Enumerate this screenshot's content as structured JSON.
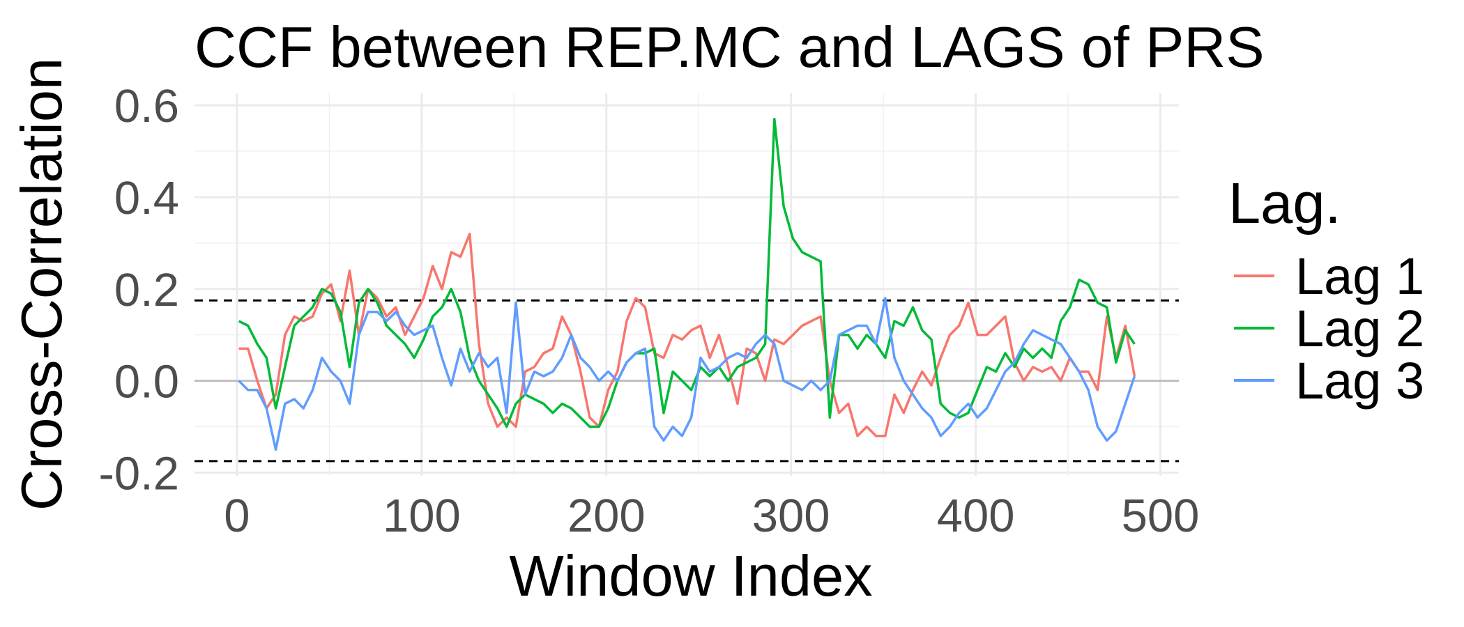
{
  "chart_data": {
    "type": "line",
    "title": "CCF between  REP.MC and LAGS of PRS",
    "x_label": "Window Index",
    "y_label": "Cross-Correlation",
    "legend_title": "Lag.",
    "legend": "right",
    "grid": true,
    "xlim": [
      -23,
      510
    ],
    "ylim": [
      -0.207,
      0.626
    ],
    "xticks": [
      0,
      100,
      200,
      300,
      400,
      500
    ],
    "yticks": [
      -0.2,
      {
        "value": 0,
        "label": "0.0"
      },
      0.2,
      0.4,
      0.6
    ],
    "x_minor_grid": [
      50,
      150,
      250,
      350,
      450
    ],
    "y_minor_grid": [
      -0.1,
      0.1,
      0.3,
      0.5
    ],
    "ref_lines": [
      {
        "value": 0,
        "color": "#bebebe",
        "dashed": false
      },
      {
        "value": 0.175,
        "color": "#000000",
        "dashed": true
      },
      {
        "value": -0.175,
        "color": "#000000",
        "dashed": true
      }
    ],
    "x": [
      1,
      6,
      11,
      16,
      21,
      26,
      31,
      36,
      41,
      46,
      51,
      56,
      61,
      66,
      71,
      76,
      81,
      86,
      91,
      96,
      101,
      106,
      111,
      116,
      121,
      126,
      131,
      136,
      141,
      146,
      151,
      156,
      161,
      166,
      171,
      176,
      181,
      186,
      191,
      196,
      201,
      206,
      211,
      216,
      221,
      226,
      231,
      236,
      241,
      246,
      251,
      256,
      261,
      266,
      271,
      276,
      281,
      286,
      291,
      296,
      301,
      306,
      311,
      316,
      321,
      326,
      331,
      336,
      341,
      346,
      351,
      356,
      361,
      366,
      371,
      376,
      381,
      386,
      391,
      396,
      401,
      406,
      411,
      416,
      421,
      426,
      431,
      436,
      441,
      446,
      451,
      456,
      461,
      466,
      471,
      476,
      481,
      486
    ],
    "series": [
      {
        "name": "Lag 1",
        "color": "#f8766d",
        "values": [
          0.07,
          0.07,
          0.0,
          -0.06,
          -0.03,
          0.1,
          0.14,
          0.13,
          0.14,
          0.19,
          0.21,
          0.13,
          0.24,
          0.1,
          0.2,
          0.18,
          0.14,
          0.16,
          0.1,
          0.14,
          0.18,
          0.25,
          0.2,
          0.28,
          0.27,
          0.32,
          0.08,
          -0.05,
          -0.1,
          -0.08,
          -0.1,
          0.02,
          0.03,
          0.06,
          0.07,
          0.14,
          0.1,
          0.02,
          -0.08,
          -0.1,
          -0.02,
          0.02,
          0.13,
          0.18,
          0.16,
          0.06,
          0.05,
          0.1,
          0.09,
          0.11,
          0.12,
          0.05,
          0.1,
          0.03,
          -0.05,
          0.07,
          0.06,
          0.0,
          0.09,
          0.08,
          0.1,
          0.12,
          0.13,
          0.14,
          0.0,
          -0.07,
          -0.05,
          -0.12,
          -0.1,
          -0.12,
          -0.12,
          -0.03,
          -0.07,
          -0.02,
          0.02,
          -0.01,
          0.05,
          0.1,
          0.12,
          0.17,
          0.1,
          0.1,
          0.12,
          0.14,
          0.04,
          0.0,
          0.03,
          0.02,
          0.03,
          0.0,
          0.05,
          0.02,
          0.02,
          -0.02,
          0.14,
          0.05,
          0.12,
          0.01
        ]
      },
      {
        "name": "Lag 2",
        "color": "#00ba38",
        "values": [
          0.13,
          0.12,
          0.08,
          0.05,
          -0.06,
          0.03,
          0.12,
          0.14,
          0.16,
          0.2,
          0.19,
          0.15,
          0.03,
          0.17,
          0.2,
          0.17,
          0.12,
          0.1,
          0.08,
          0.05,
          0.09,
          0.14,
          0.16,
          0.2,
          0.15,
          0.05,
          0.0,
          -0.03,
          -0.06,
          -0.1,
          -0.05,
          -0.03,
          -0.04,
          -0.05,
          -0.07,
          -0.05,
          -0.06,
          -0.08,
          -0.1,
          -0.1,
          -0.06,
          0.0,
          0.04,
          0.06,
          0.06,
          0.07,
          -0.07,
          0.02,
          0.0,
          -0.02,
          0.03,
          0.01,
          0.03,
          0.0,
          0.03,
          0.04,
          0.05,
          0.08,
          0.57,
          0.38,
          0.31,
          0.28,
          0.27,
          0.26,
          -0.08,
          0.1,
          0.1,
          0.07,
          0.1,
          0.08,
          0.05,
          0.13,
          0.12,
          0.16,
          0.11,
          0.09,
          -0.05,
          -0.07,
          -0.08,
          -0.07,
          -0.02,
          0.03,
          0.02,
          0.06,
          0.03,
          0.07,
          0.05,
          0.07,
          0.05,
          0.13,
          0.16,
          0.22,
          0.21,
          0.17,
          0.16,
          0.04,
          0.11,
          0.08
        ]
      },
      {
        "name": "Lag 3",
        "color": "#619cff",
        "values": [
          0.0,
          -0.02,
          -0.02,
          -0.06,
          -0.15,
          -0.05,
          -0.04,
          -0.06,
          -0.02,
          0.05,
          0.02,
          0.0,
          -0.05,
          0.1,
          0.15,
          0.15,
          0.13,
          0.15,
          0.12,
          0.1,
          0.11,
          0.12,
          0.05,
          -0.01,
          0.07,
          0.02,
          0.06,
          0.03,
          0.05,
          -0.07,
          0.17,
          -0.03,
          0.02,
          0.01,
          0.02,
          0.05,
          0.1,
          0.05,
          0.03,
          0.0,
          0.02,
          0.0,
          0.04,
          0.06,
          0.07,
          -0.1,
          -0.13,
          -0.1,
          -0.12,
          -0.08,
          0.05,
          0.02,
          0.03,
          0.05,
          0.06,
          0.05,
          0.08,
          0.1,
          0.08,
          0.0,
          -0.01,
          -0.02,
          0.0,
          -0.02,
          0.0,
          0.1,
          0.11,
          0.12,
          0.12,
          0.08,
          0.18,
          0.05,
          0.0,
          -0.03,
          -0.06,
          -0.08,
          -0.12,
          -0.1,
          -0.07,
          -0.05,
          -0.08,
          -0.06,
          -0.02,
          0.02,
          0.04,
          0.08,
          0.11,
          0.1,
          0.09,
          0.08,
          0.05,
          0.02,
          -0.02,
          -0.1,
          -0.13,
          -0.11,
          -0.05,
          0.01
        ]
      }
    ]
  }
}
